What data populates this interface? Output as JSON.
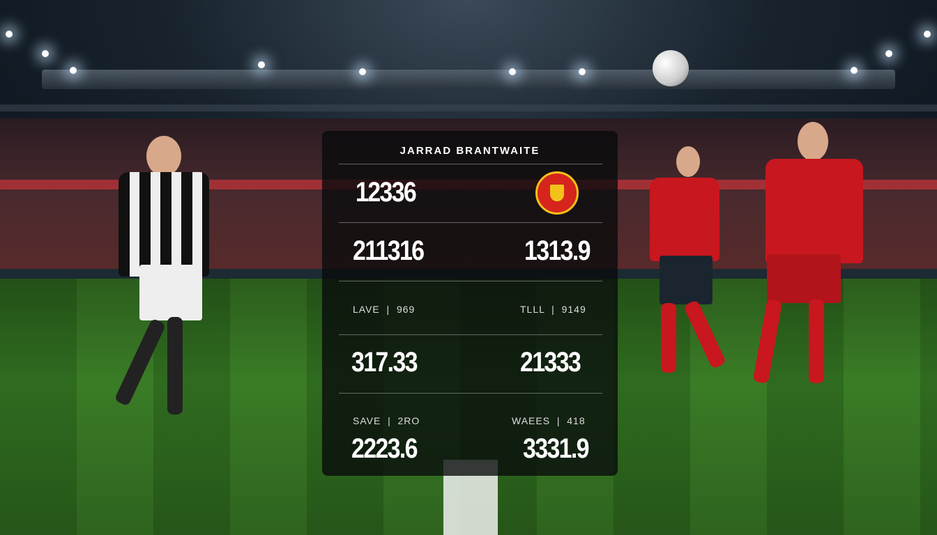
{
  "panel": {
    "title": "JARRAD BRANTWAITE",
    "row1": {
      "left": "12336"
    },
    "row2": {
      "left": "211316",
      "right": "1313.9"
    },
    "row3": {
      "left_label": "LAVE",
      "left_value": "969",
      "right_label": "TLLL",
      "right_value": "9149"
    },
    "row4": {
      "left": "317.33",
      "right": "21333"
    },
    "row5": {
      "left_label": "SAVE",
      "left_value": "2RO",
      "right_label": "WAEES",
      "right_value": "418"
    },
    "row6": {
      "left": "2223.6",
      "right": "3331.9"
    },
    "crest_icon": "manchester-united-crest"
  },
  "colors": {
    "home_kit": "#c8171e",
    "away_kit": "#1a1a1a",
    "crest_gold": "#f2c21a"
  }
}
